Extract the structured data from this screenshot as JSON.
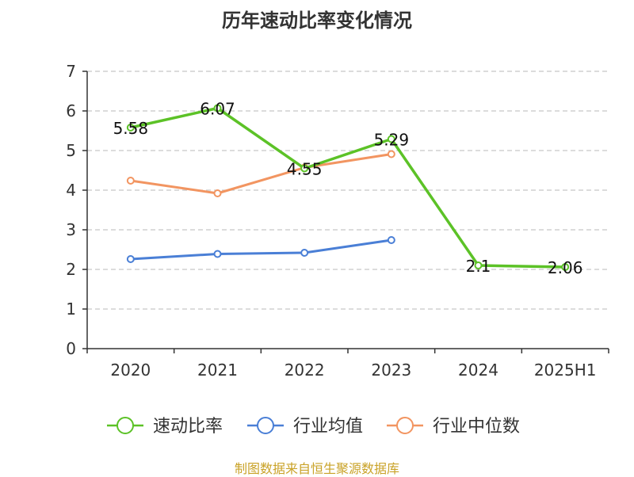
{
  "chart_data": {
    "type": "line",
    "title": "历年速动比率变化情况",
    "categories": [
      "2020",
      "2021",
      "2022",
      "2023",
      "2024",
      "2025H1"
    ],
    "ylim": [
      0,
      7
    ],
    "yticks": [
      0,
      1,
      2,
      3,
      4,
      5,
      6,
      7
    ],
    "grid": true,
    "legend_position": "bottom",
    "series": [
      {
        "name": "速动比率",
        "color": "#5cc227",
        "values": [
          5.58,
          6.07,
          4.55,
          5.29,
          2.1,
          2.06
        ],
        "labels": [
          "5.58",
          "6.07",
          "4.55",
          "5.29",
          "2.1",
          "2.06"
        ]
      },
      {
        "name": "行业均值",
        "color": "#4a7fd6",
        "values": [
          2.26,
          2.39,
          2.42,
          2.74,
          null,
          null
        ]
      },
      {
        "name": "行业中位数",
        "color": "#f29561",
        "values": [
          4.24,
          3.92,
          4.57,
          4.91,
          null,
          null
        ]
      }
    ]
  },
  "source": "制图数据来自恒生聚源数据库"
}
